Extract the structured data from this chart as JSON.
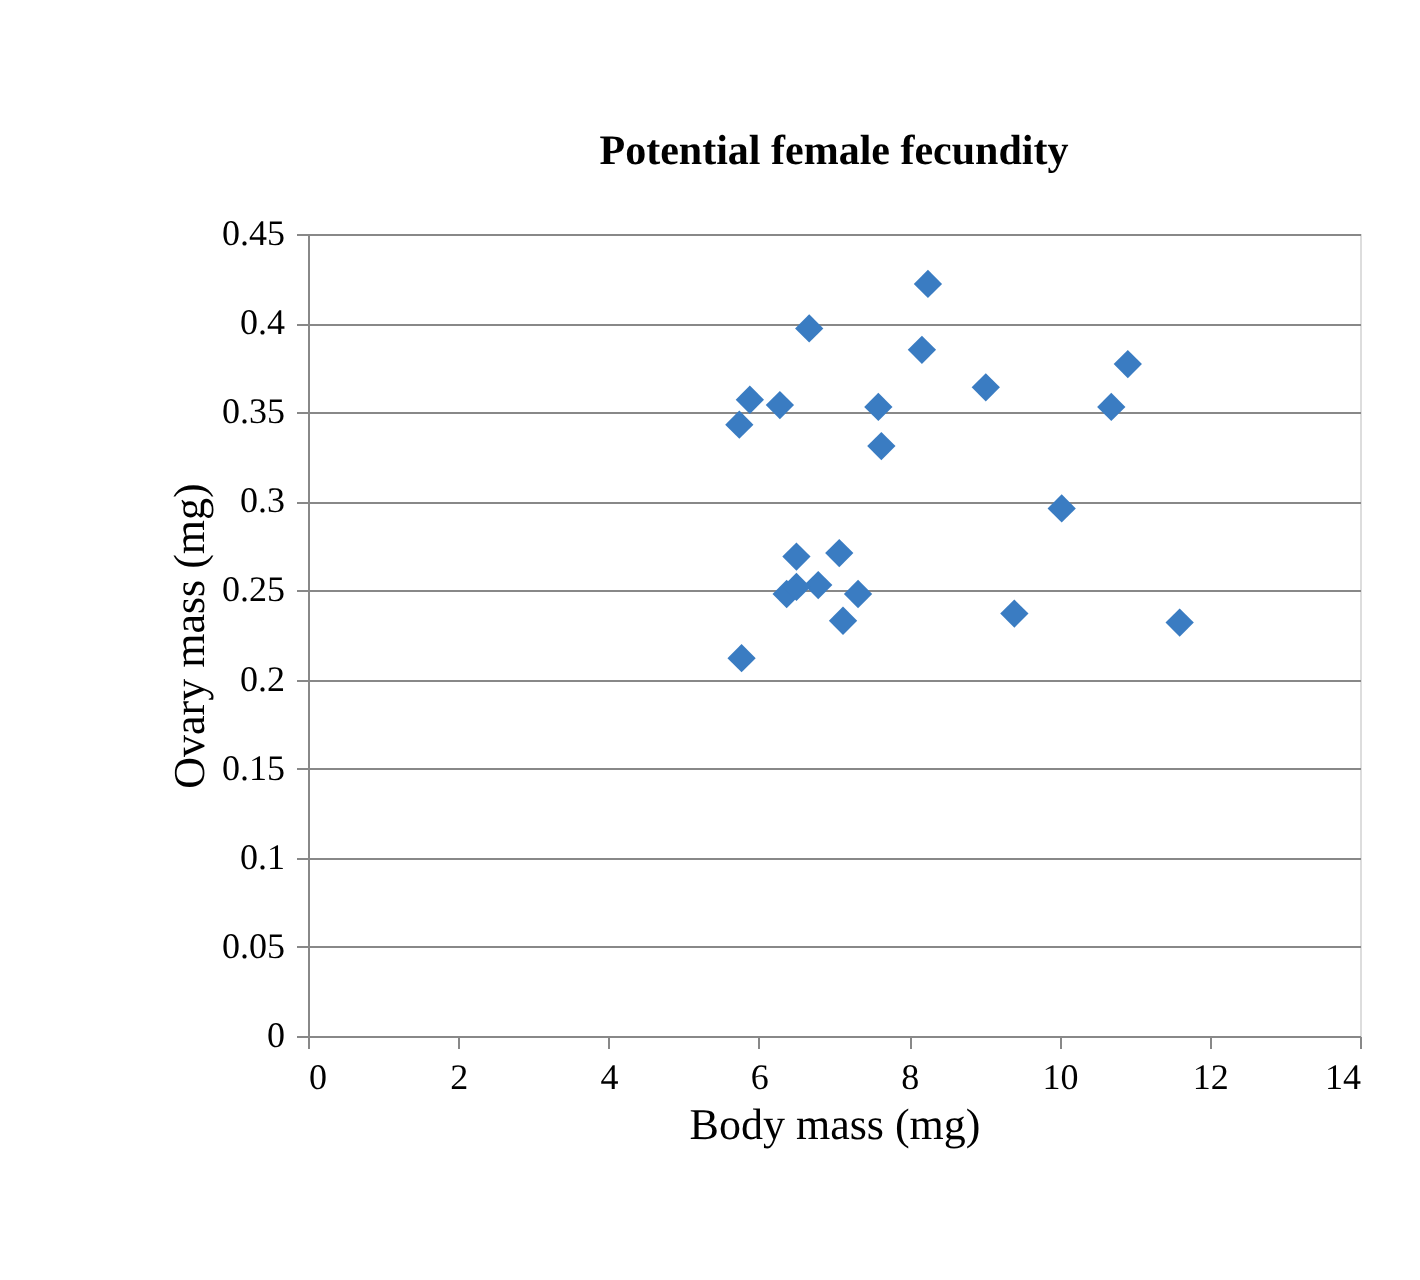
{
  "chart_data": {
    "type": "scatter",
    "title": "Potential female fecundity",
    "xlabel": "Body mass (mg)",
    "ylabel": "Ovary mass (mg)",
    "x": [
      8.25,
      6.67,
      8.17,
      10.91,
      9.02,
      5.88,
      6.28,
      5.74,
      7.59,
      10.69,
      7.63,
      10.03,
      6.5,
      7.07,
      6.79,
      6.37,
      6.5,
      7.32,
      7.12,
      9.4,
      11.6,
      5.77
    ],
    "values": [
      0.422,
      0.397,
      0.385,
      0.377,
      0.364,
      0.357,
      0.354,
      0.343,
      0.353,
      0.353,
      0.331,
      0.296,
      0.269,
      0.271,
      0.253,
      0.248,
      0.252,
      0.248,
      0.233,
      0.237,
      0.232,
      0.212
    ],
    "color": "#3a7cc2",
    "marker": "diamond",
    "xlim": [
      0,
      14
    ],
    "xticks": [
      0,
      2,
      4,
      6,
      8,
      10,
      12,
      14
    ],
    "ylim": [
      0,
      0.45
    ],
    "yticks": [
      0,
      0.05,
      0.1,
      0.15,
      0.2,
      0.25,
      0.3,
      0.35,
      0.4,
      0.45
    ],
    "grid": "y"
  }
}
